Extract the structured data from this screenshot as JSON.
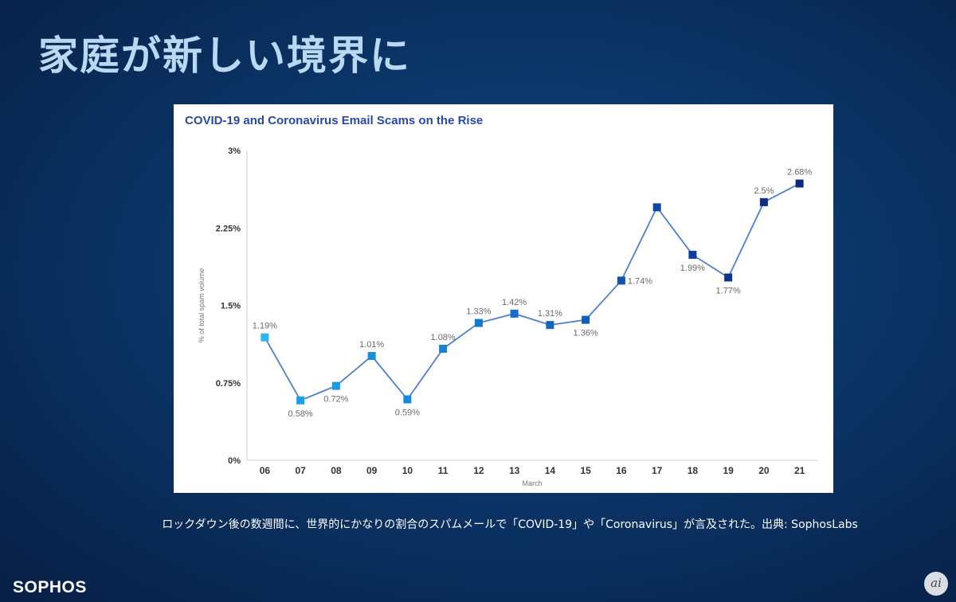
{
  "slide": {
    "title": "家庭が新しい境界に",
    "caption": "ロックダウン後の数週間に、世界的にかなりの割合のスパムメールで「COVID-19」や「Coronavirus」が言及された。出典: SophosLabs",
    "brand": "SOPHOS",
    "corner_mark": "ai"
  },
  "chart_data": {
    "type": "line",
    "title": "COVID-19 and Coronavirus Email Scams on the Rise",
    "xlabel": "March",
    "ylabel": "% of total spam volume",
    "categories": [
      "06",
      "07",
      "08",
      "09",
      "10",
      "11",
      "12",
      "13",
      "14",
      "15",
      "16",
      "17",
      "18",
      "19",
      "20",
      "21"
    ],
    "values": [
      1.19,
      0.58,
      0.72,
      1.01,
      0.59,
      1.08,
      1.33,
      1.42,
      1.31,
      1.36,
      1.74,
      2.45,
      1.99,
      1.77,
      2.5,
      2.68
    ],
    "labels": [
      "1.19%",
      "0.58%",
      "0.72%",
      "1.01%",
      "0.59%",
      "1.08%",
      "1.33%",
      "1.42%",
      "1.31%",
      "1.36%",
      "1.74%",
      "",
      "1.99%",
      "1.77%",
      "2.5%",
      "2.68%"
    ],
    "label_position": [
      "above",
      "below",
      "below",
      "above",
      "below",
      "above",
      "above",
      "above",
      "above",
      "below",
      "right",
      "none",
      "below",
      "below",
      "above",
      "above"
    ],
    "yticks": [
      0,
      0.75,
      1.5,
      2.25,
      3
    ],
    "ytick_labels": [
      "0%",
      "0.75%",
      "1.5%",
      "2.25%",
      "3%"
    ],
    "ylim": [
      0,
      3
    ],
    "line_color": "#4a7fd4",
    "marker_colors": [
      "#2bb6ec",
      "#1aa2e6",
      "#1a9ae2",
      "#1890dc",
      "#178ad8",
      "#1682d2",
      "#1478cc",
      "#1370c6",
      "#1266c0",
      "#105cb8",
      "#0f52b0",
      "#0e48a6",
      "#0d3e9c",
      "#0c3592",
      "#0b2e8a",
      "#0a2a82"
    ],
    "grid": false,
    "legend": "none"
  }
}
